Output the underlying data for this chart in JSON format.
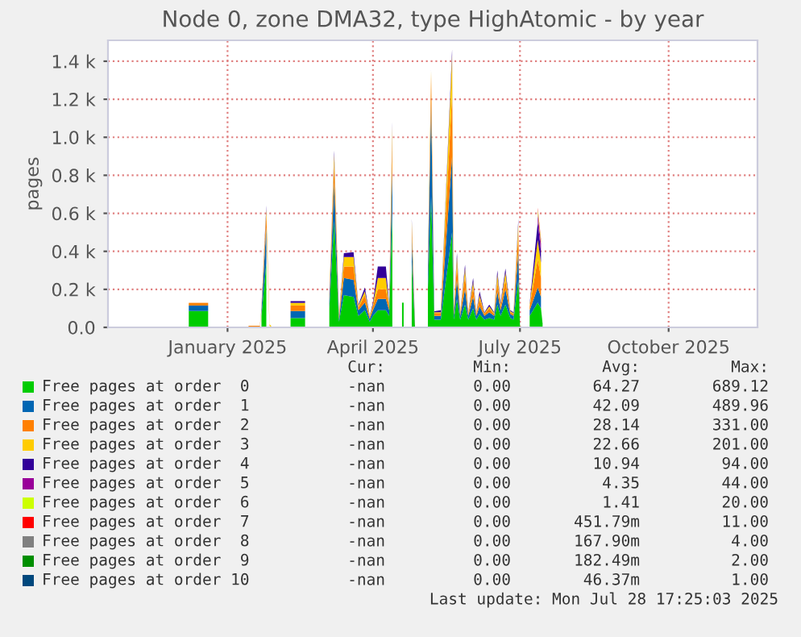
{
  "chart_data": {
    "type": "area",
    "stacked": true,
    "title": "Node 0, zone DMA32, type HighAtomic - by year",
    "ylabel": "pages",
    "xlim": [
      "2024-10-19",
      "2025-11-25"
    ],
    "xticks": [
      {
        "value": "2025-01-01",
        "label": "January 2025"
      },
      {
        "value": "2025-04-01",
        "label": "April 2025"
      },
      {
        "value": "2025-07-01",
        "label": "July 2025"
      },
      {
        "value": "2025-10-01",
        "label": "October 2025"
      }
    ],
    "ylim": [
      0,
      1510
    ],
    "yticks": [
      {
        "value": 0,
        "label": "0.0"
      },
      {
        "value": 200,
        "label": "0.2 k"
      },
      {
        "value": 400,
        "label": "0.4 k"
      },
      {
        "value": 600,
        "label": "0.6 k"
      },
      {
        "value": 800,
        "label": "0.8 k"
      },
      {
        "value": 1000,
        "label": "1.0 k"
      },
      {
        "value": 1200,
        "label": "1.2 k"
      },
      {
        "value": 1400,
        "label": "1.4 k"
      }
    ],
    "grid": true,
    "legend": "bottom",
    "x": [
      "2024-12-08",
      "2024-12-20",
      "2024-12-21",
      "2025-01-14",
      "2025-01-21",
      "2025-01-22",
      "2025-01-25",
      "2025-01-27",
      "2025-01-28",
      "2025-01-29",
      "2025-02-09",
      "2025-02-18",
      "2025-02-19",
      "2025-03-05",
      "2025-03-08",
      "2025-03-11",
      "2025-03-14",
      "2025-03-20",
      "2025-03-23",
      "2025-03-27",
      "2025-03-30",
      "2025-04-01",
      "2025-04-04",
      "2025-04-09",
      "2025-04-11",
      "2025-04-13",
      "2025-04-14",
      "2025-04-19",
      "2025-04-20",
      "2025-04-21",
      "2025-04-25",
      "2025-04-27",
      "2025-04-28",
      "2025-05-05",
      "2025-05-07",
      "2025-05-09",
      "2025-05-13",
      "2025-05-20",
      "2025-05-21",
      "2025-05-23",
      "2025-05-25",
      "2025-05-28",
      "2025-05-30",
      "2025-06-02",
      "2025-06-04",
      "2025-06-06",
      "2025-06-09",
      "2025-06-12",
      "2025-06-15",
      "2025-06-17",
      "2025-06-19",
      "2025-06-22",
      "2025-06-25",
      "2025-06-27",
      "2025-06-30",
      "2025-07-01",
      "2025-07-02",
      "2025-07-07",
      "2025-07-12",
      "2025-07-14",
      "2025-07-15"
    ],
    "series": [
      {
        "name": "Free pages at order  0",
        "color": "#00cc00",
        "values": [
          86,
          86,
          null,
          null,
          null,
          60,
          338,
          null,
          null,
          null,
          49,
          49,
          null,
          100,
          560,
          30,
          170,
          160,
          60,
          90,
          30,
          60,
          90,
          90,
          60,
          600,
          null,
          130,
          130,
          null,
          350,
          5,
          null,
          200,
          689,
          40,
          40,
          500,
          40,
          150,
          40,
          120,
          40,
          100,
          40,
          70,
          40,
          50,
          40,
          120,
          60,
          120,
          50,
          40,
          250,
          10,
          null,
          60,
          130,
          100,
          20
        ]
      },
      {
        "name": "Free pages at order  1",
        "color": "#0066b3",
        "values": [
          29,
          29,
          null,
          null,
          null,
          30,
          190,
          null,
          null,
          null,
          37,
          37,
          null,
          40,
          200,
          15,
          90,
          90,
          30,
          40,
          15,
          30,
          60,
          60,
          30,
          250,
          null,
          null,
          null,
          null,
          120,
          5,
          null,
          80,
          490,
          20,
          20,
          400,
          20,
          100,
          20,
          80,
          20,
          60,
          20,
          40,
          20,
          30,
          20,
          70,
          30,
          80,
          20,
          20,
          150,
          5,
          null,
          30,
          80,
          60,
          null
        ]
      },
      {
        "name": "Free pages at order  2",
        "color": "#ff8000",
        "values": [
          14,
          14,
          null,
          8,
          8,
          10,
          70,
          8,
          null,
          null,
          29,
          29,
          null,
          20,
          100,
          10,
          60,
          70,
          15,
          40,
          10,
          20,
          50,
          50,
          20,
          150,
          null,
          null,
          null,
          null,
          60,
          5,
          null,
          30,
          150,
          15,
          15,
          331,
          15,
          80,
          10,
          70,
          10,
          50,
          10,
          40,
          10,
          20,
          10,
          50,
          20,
          50,
          10,
          10,
          100,
          10,
          null,
          20,
          150,
          100,
          null
        ]
      },
      {
        "name": "Free pages at order  3",
        "color": "#ffcc00",
        "values": [
          null,
          null,
          null,
          null,
          null,
          5,
          23,
          8,
          8,
          null,
          14,
          14,
          null,
          10,
          50,
          5,
          50,
          50,
          10,
          20,
          5,
          10,
          60,
          60,
          10,
          60,
          null,
          null,
          null,
          null,
          30,
          5,
          null,
          10,
          20,
          5,
          5,
          201,
          5,
          40,
          5,
          40,
          5,
          30,
          5,
          20,
          5,
          10,
          5,
          40,
          10,
          40,
          5,
          5,
          50,
          null,
          null,
          10,
          100,
          80,
          null
        ]
      },
      {
        "name": "Free pages at order  4",
        "color": "#330099",
        "values": [
          null,
          null,
          null,
          null,
          null,
          5,
          20,
          null,
          null,
          null,
          9,
          9,
          null,
          5,
          20,
          5,
          20,
          25,
          5,
          20,
          3,
          10,
          60,
          60,
          5,
          20,
          null,
          null,
          null,
          null,
          10,
          10,
          null,
          5,
          5,
          5,
          10,
          30,
          5,
          20,
          5,
          20,
          5,
          20,
          5,
          20,
          5,
          10,
          5,
          20,
          10,
          20,
          5,
          5,
          20,
          null,
          null,
          5,
          94,
          60,
          null
        ]
      },
      {
        "name": "Free pages at order  5",
        "color": "#990099",
        "values": [
          null,
          null,
          null,
          null,
          null,
          null,
          null,
          null,
          null,
          null,
          null,
          null,
          null,
          null,
          null,
          null,
          null,
          null,
          null,
          null,
          null,
          null,
          null,
          null,
          null,
          null,
          null,
          null,
          null,
          null,
          null,
          null,
          null,
          null,
          null,
          null,
          null,
          null,
          null,
          null,
          null,
          null,
          null,
          null,
          null,
          null,
          null,
          null,
          null,
          null,
          null,
          null,
          null,
          null,
          null,
          null,
          null,
          null,
          44,
          40,
          null
        ]
      },
      {
        "name": "Free pages at order  6",
        "color": "#ccff00",
        "values": [
          null,
          null,
          null,
          null,
          null,
          null,
          null,
          null,
          null,
          null,
          null,
          null,
          null,
          null,
          null,
          null,
          null,
          null,
          null,
          null,
          null,
          null,
          null,
          null,
          null,
          null,
          null,
          null,
          null,
          null,
          null,
          null,
          null,
          null,
          null,
          null,
          null,
          null,
          null,
          null,
          null,
          null,
          null,
          null,
          null,
          null,
          null,
          null,
          null,
          null,
          null,
          null,
          null,
          null,
          null,
          null,
          null,
          null,
          20,
          15,
          null
        ]
      },
      {
        "name": "Free pages at order  7",
        "color": "#ff0000",
        "values": [
          null,
          null,
          null,
          null,
          null,
          null,
          null,
          null,
          null,
          null,
          null,
          null,
          null,
          null,
          null,
          null,
          null,
          null,
          null,
          null,
          null,
          null,
          null,
          null,
          null,
          null,
          null,
          null,
          null,
          null,
          null,
          null,
          null,
          null,
          null,
          null,
          null,
          null,
          null,
          null,
          null,
          null,
          null,
          null,
          null,
          null,
          null,
          null,
          null,
          null,
          null,
          null,
          null,
          null,
          null,
          null,
          null,
          null,
          11,
          8,
          null
        ]
      },
      {
        "name": "Free pages at order  8",
        "color": "#808080",
        "values": [
          null,
          null,
          null,
          null,
          null,
          null,
          null,
          null,
          null,
          null,
          null,
          null,
          null,
          null,
          null,
          null,
          null,
          null,
          null,
          null,
          null,
          null,
          null,
          null,
          null,
          null,
          null,
          null,
          null,
          null,
          null,
          null,
          null,
          null,
          null,
          null,
          null,
          null,
          null,
          null,
          null,
          null,
          null,
          null,
          null,
          null,
          null,
          null,
          null,
          null,
          null,
          null,
          null,
          null,
          null,
          null,
          null,
          null,
          null,
          null,
          null
        ]
      },
      {
        "name": "Free pages at order  9",
        "color": "#008f00",
        "values": [
          null,
          null,
          null,
          null,
          null,
          null,
          null,
          null,
          null,
          null,
          null,
          null,
          null,
          null,
          null,
          null,
          null,
          null,
          null,
          null,
          null,
          null,
          null,
          null,
          null,
          null,
          null,
          null,
          null,
          null,
          null,
          null,
          null,
          null,
          null,
          null,
          null,
          null,
          null,
          null,
          null,
          null,
          null,
          null,
          null,
          null,
          null,
          null,
          null,
          null,
          null,
          null,
          null,
          null,
          null,
          null,
          null,
          null,
          null,
          null,
          null
        ]
      },
      {
        "name": "Free pages at order 10",
        "color": "#00487d",
        "values": [
          null,
          null,
          null,
          null,
          null,
          null,
          null,
          null,
          null,
          null,
          null,
          null,
          null,
          null,
          null,
          null,
          null,
          null,
          null,
          null,
          null,
          null,
          null,
          null,
          null,
          null,
          null,
          null,
          null,
          null,
          null,
          null,
          null,
          null,
          null,
          null,
          null,
          null,
          null,
          null,
          null,
          null,
          null,
          null,
          null,
          null,
          null,
          null,
          null,
          null,
          null,
          null,
          null,
          null,
          null,
          null,
          null,
          null,
          null,
          null,
          null
        ]
      }
    ],
    "annotations": [
      "Cur:",
      "Min:",
      "Avg:",
      "Max:",
      "-nan",
      "0.00",
      "64.27",
      "689.12",
      "-nan",
      "0.00",
      "42.09",
      "489.96",
      "-nan",
      "0.00",
      "28.14",
      "331.00",
      "-nan",
      "0.00",
      "22.66",
      "201.00",
      "-nan",
      "0.00",
      "10.94",
      "94.00",
      "-nan",
      "0.00",
      "4.35",
      "44.00",
      "-nan",
      "0.00",
      "1.41",
      "20.00",
      "-nan",
      "0.00",
      "451.79m",
      "11.00",
      "-nan",
      "0.00",
      "167.90m",
      "4.00",
      "-nan",
      "0.00",
      "182.49m",
      "2.00",
      "-nan",
      "0.00",
      "46.37m",
      "1.00",
      "Last update: Mon Jul 28 17:25:03 2025"
    ]
  }
}
